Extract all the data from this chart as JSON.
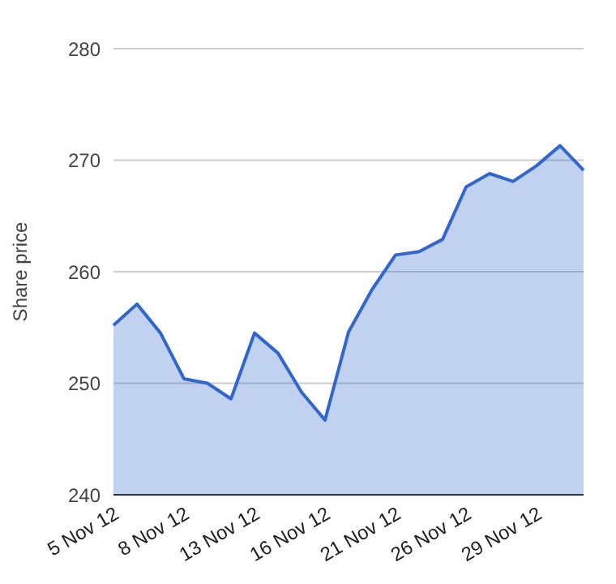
{
  "chart_data": {
    "type": "area",
    "ylabel": "Share price",
    "categories": [
      "5 Nov 12",
      null,
      null,
      "8 Nov 12",
      null,
      null,
      "13 Nov 12",
      null,
      null,
      "16 Nov 12",
      null,
      null,
      "21 Nov 12",
      null,
      null,
      "26 Nov 12",
      null,
      null,
      "29 Nov 12",
      null,
      null
    ],
    "series": [
      {
        "color": "#3366cc",
        "values": [
          255.2,
          257.1,
          254.5,
          250.4,
          250.0,
          248.6,
          254.5,
          252.7,
          249.2,
          246.7,
          254.6,
          258.4,
          261.5,
          261.8,
          262.9,
          267.6,
          268.8,
          268.1,
          269.5,
          271.3,
          269.1
        ]
      }
    ],
    "ylim": [
      240,
      280
    ],
    "yticks": [
      240,
      250,
      260,
      270,
      280
    ],
    "grid": "y",
    "marker": "none",
    "line_style": "solid"
  }
}
